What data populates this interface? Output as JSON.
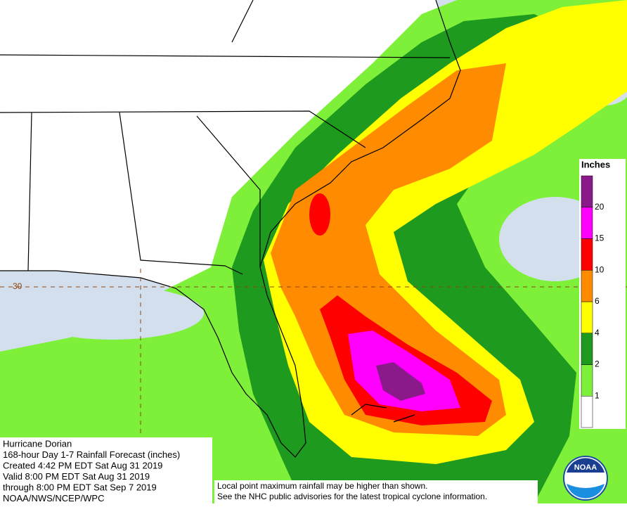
{
  "map": {
    "latitude_label": "30",
    "legend": {
      "title": "Inches",
      "ticks": [
        1,
        2,
        4,
        6,
        10,
        15,
        20
      ],
      "colors": [
        "#ffffff",
        "#7ef03a",
        "#1e9a1e",
        "#ffff00",
        "#ff8c00",
        "#ff0000",
        "#ff00ff",
        "#8a1a8a"
      ]
    },
    "info": {
      "lines": [
        "Hurricane Dorian",
        "168-hour Day 1-7 Rainfall Forecast (inches)",
        "Created 4:42 PM EDT Sat Aug 31 2019",
        "Valid 8:00 PM EDT Sat Aug 31 2019",
        "through 8:00 PM EDT Sat Sep 7 2019",
        "NOAA/NWS/NCEP/WPC"
      ]
    },
    "disclaimer": {
      "lines": [
        "Local point maximum rainfall may be higher than shown.",
        "See the NHC public advisories for the latest tropical cyclone information."
      ]
    },
    "logo": {
      "text": "NOAA"
    }
  }
}
